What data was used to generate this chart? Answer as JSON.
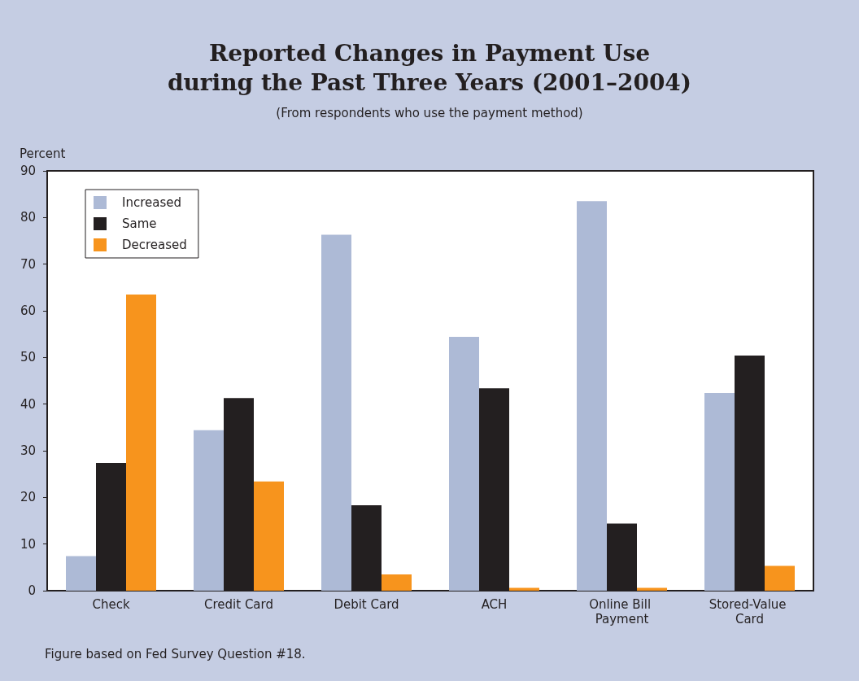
{
  "chart_data": {
    "type": "bar",
    "title": "Reported Changes in Payment Use\nduring the Past Three Years (2001–2004)",
    "subtitle": "(From respondents who use the payment method)",
    "ylabel": "Percent",
    "categories": [
      "Check",
      "Credit Card",
      "Debit Card",
      "ACH",
      "Online Bill Payment",
      "Stored-Value Card"
    ],
    "series": [
      {
        "name": "Increased",
        "color": "#adbad6",
        "values": [
          7.4,
          34.4,
          76.3,
          54.4,
          83.5,
          42.4
        ]
      },
      {
        "name": "Same",
        "color": "#231f20",
        "values": [
          27.4,
          41.3,
          18.3,
          43.4,
          14.4,
          50.4
        ]
      },
      {
        "name": "Decreased",
        "color": "#f7941d",
        "values": [
          63.5,
          23.4,
          3.5,
          0.6,
          0.6,
          5.3
        ]
      }
    ],
    "ylim": [
      0,
      90
    ],
    "yticks": [
      0,
      10,
      20,
      30,
      40,
      50,
      60,
      70,
      80,
      90
    ],
    "grid": false,
    "legend": "top left",
    "annotations": [
      "Figure based on Fed Survey Question #18."
    ]
  }
}
